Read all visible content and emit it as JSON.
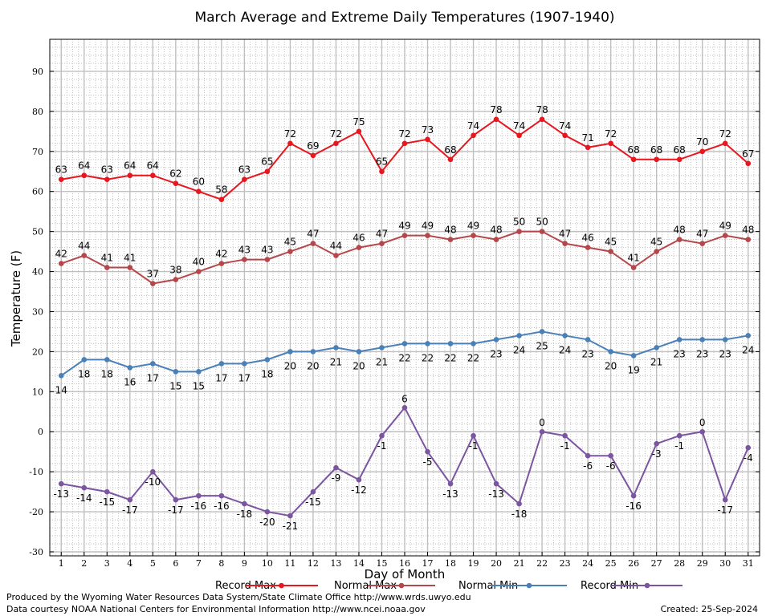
{
  "chart_data": {
    "type": "line",
    "title": "March Average and Extreme Daily Temperatures (1907-1940)",
    "xlabel": "Day of Month",
    "ylabel": "Temperature (F)",
    "x": [
      1,
      2,
      3,
      4,
      5,
      6,
      7,
      8,
      9,
      10,
      11,
      12,
      13,
      14,
      15,
      16,
      17,
      18,
      19,
      20,
      21,
      22,
      23,
      24,
      25,
      26,
      27,
      28,
      29,
      30,
      31
    ],
    "xlim": [
      0.5,
      31.5
    ],
    "ylim": [
      -31,
      98
    ],
    "yticks": [
      -30,
      -20,
      -10,
      0,
      10,
      20,
      30,
      40,
      50,
      60,
      70,
      80,
      90
    ],
    "grid": true,
    "legend_position": "bottom",
    "series": [
      {
        "name": "Record Max",
        "color": "#e8161e",
        "values": [
          63,
          64,
          63,
          64,
          64,
          62,
          60,
          58,
          63,
          65,
          72,
          69,
          72,
          75,
          65,
          72,
          73,
          68,
          74,
          78,
          74,
          78,
          74,
          71,
          72,
          68,
          68,
          68,
          70,
          72,
          67
        ]
      },
      {
        "name": "Normal Max",
        "color": "#b5474a",
        "values": [
          42,
          44,
          41,
          41,
          37,
          38,
          40,
          42,
          43,
          43,
          45,
          47,
          44,
          46,
          47,
          49,
          49,
          48,
          49,
          48,
          50,
          50,
          47,
          46,
          45,
          41,
          45,
          48,
          47,
          49,
          48
        ]
      },
      {
        "name": "Normal Min",
        "color": "#4a80b8",
        "values": [
          14,
          18,
          18,
          16,
          17,
          15,
          15,
          17,
          17,
          18,
          20,
          20,
          21,
          20,
          21,
          22,
          22,
          22,
          22,
          23,
          24,
          25,
          24,
          23,
          20,
          19,
          21,
          23,
          23,
          23,
          24
        ]
      },
      {
        "name": "Record Min",
        "color": "#7b55a0",
        "values": [
          -13,
          -14,
          -15,
          -17,
          -10,
          -17,
          -16,
          -16,
          -18,
          -20,
          -21,
          -15,
          -9,
          -12,
          -1,
          6,
          -5,
          -13,
          -1,
          -13,
          -18,
          0,
          -1,
          -6,
          -6,
          -16,
          -3,
          -1,
          0,
          -17,
          -4
        ]
      }
    ]
  },
  "footer": {
    "produced_by": "Produced by the Wyoming Water Resources Data System/State Climate Office http://www.wrds.uwyo.edu",
    "courtesy": "Data courtesy NOAA National Centers for Environmental Information http://www.ncei.noaa.gov",
    "created": "Created:  25-Sep-2024"
  }
}
